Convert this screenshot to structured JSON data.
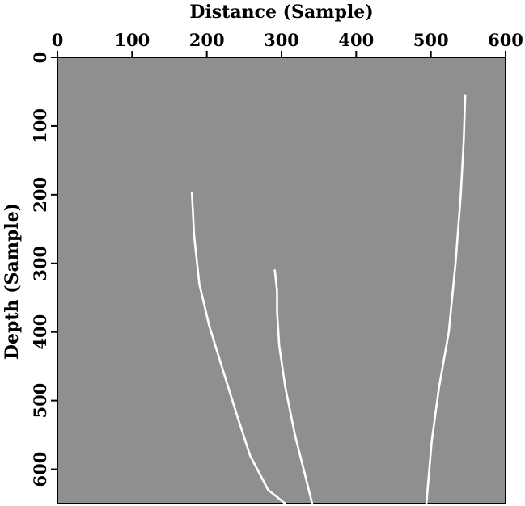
{
  "chart_data": {
    "type": "line",
    "xlabel": "Distance (Sample)",
    "ylabel": "Depth (Sample)",
    "xlim": [
      0,
      600
    ],
    "ylim": [
      0,
      650
    ],
    "x_ticks": [
      "0",
      "100",
      "200",
      "300",
      "400",
      "500",
      "600"
    ],
    "y_ticks": [
      "0",
      "100",
      "200",
      "300",
      "400",
      "500",
      "600"
    ],
    "y_inverted": true,
    "x_axis_position": "top",
    "grid": false,
    "legend": "none",
    "colors": {
      "background": "#8f8f8f",
      "line": "#ffffff",
      "text": "#000000"
    },
    "series": [
      {
        "points": [
          [
            180,
            197
          ],
          [
            183,
            260
          ],
          [
            190,
            330
          ],
          [
            203,
            390
          ],
          [
            220,
            450
          ],
          [
            240,
            520
          ],
          [
            258,
            580
          ],
          [
            282,
            630
          ],
          [
            305,
            650
          ]
        ]
      },
      {
        "points": [
          [
            291,
            310
          ],
          [
            294,
            340
          ],
          [
            294,
            370
          ],
          [
            297,
            420
          ],
          [
            305,
            480
          ],
          [
            318,
            550
          ],
          [
            332,
            610
          ],
          [
            341,
            650
          ]
        ]
      },
      {
        "points": [
          [
            546,
            55
          ],
          [
            544,
            120
          ],
          [
            540,
            200
          ],
          [
            533,
            300
          ],
          [
            524,
            400
          ],
          [
            511,
            480
          ],
          [
            501,
            560
          ],
          [
            494,
            650
          ]
        ]
      }
    ]
  }
}
